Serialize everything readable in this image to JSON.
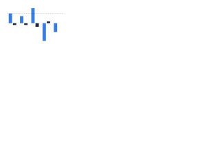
{
  "chart_data": {
    "type": "bar",
    "categories": [
      null,
      null,
      null,
      null,
      null
    ],
    "series": [
      {
        "color": "#3b7ddd",
        "values": [
          11,
          8,
          17,
          -20,
          -10
        ]
      },
      {
        "color": "#1d2a44",
        "values": [
          -2,
          -2,
          -4,
          2,
          null
        ]
      }
    ],
    "ylim": [
      -25,
      20
    ],
    "reference_line": 11,
    "reference_color": "#c8c8c8"
  }
}
